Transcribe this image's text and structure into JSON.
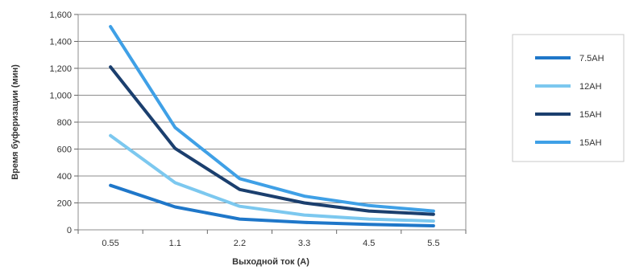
{
  "chart_data": {
    "type": "line",
    "title": "",
    "xlabel": "Выходной ток (A)",
    "ylabel": "Время буферизации (мин)",
    "categories": [
      "0.55",
      "1.1",
      "2.2",
      "3.3",
      "4.5",
      "5.5"
    ],
    "ylim": [
      0,
      1600
    ],
    "yticks": [
      "0",
      "200",
      "400",
      "600",
      "800",
      "1,000",
      "1,200",
      "1,400",
      "1,600"
    ],
    "grid": true,
    "legend_position": "right",
    "series": [
      {
        "name": "7.5AH",
        "color": "#1f77c9",
        "values": [
          330,
          170,
          80,
          55,
          40,
          30
        ]
      },
      {
        "name": "12AH",
        "color": "#7cc8ef",
        "values": [
          700,
          350,
          175,
          110,
          80,
          65
        ]
      },
      {
        "name": "15AH",
        "color": "#1b3f6e",
        "values": [
          1210,
          605,
          300,
          200,
          140,
          115
        ]
      },
      {
        "name": "15AH",
        "color": "#3fa0e6",
        "values": [
          1510,
          760,
          380,
          250,
          180,
          140
        ]
      }
    ]
  }
}
